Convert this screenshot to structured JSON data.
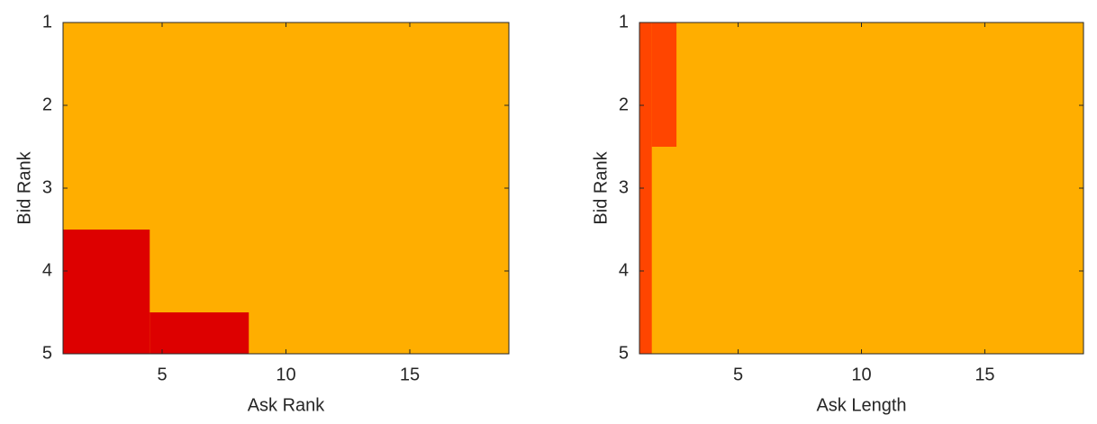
{
  "chart_data": [
    {
      "type": "heatmap",
      "x_label": "Ask Rank",
      "y_label": "Bid Rank",
      "xlim": [
        1,
        19
      ],
      "ylim": [
        1,
        5
      ],
      "y_reversed": true,
      "xticks": [
        5,
        10,
        15
      ],
      "yticks": [
        1,
        2,
        3,
        4,
        5
      ],
      "background": "#ffae00",
      "cells": [
        {
          "color": "#dd0000",
          "x": [
            0.5,
            4.5
          ],
          "y": [
            3.5,
            5.5
          ]
        },
        {
          "color": "#dd0000",
          "x": [
            4.5,
            8.5
          ],
          "y": [
            4.5,
            5.5
          ]
        }
      ]
    },
    {
      "type": "heatmap",
      "x_label": "Ask Length",
      "y_label": "Bid Rank",
      "xlim": [
        1,
        19
      ],
      "ylim": [
        1,
        5
      ],
      "y_reversed": true,
      "xticks": [
        5,
        10,
        15
      ],
      "yticks": [
        1,
        2,
        3,
        4,
        5
      ],
      "background": "#ffae00",
      "cells": [
        {
          "color": "#ff4500",
          "x": [
            0.5,
            1.5
          ],
          "y": [
            0.5,
            5.5
          ]
        },
        {
          "color": "#ff4500",
          "x": [
            1.5,
            2.5
          ],
          "y": [
            0.5,
            2.5
          ]
        }
      ]
    }
  ]
}
